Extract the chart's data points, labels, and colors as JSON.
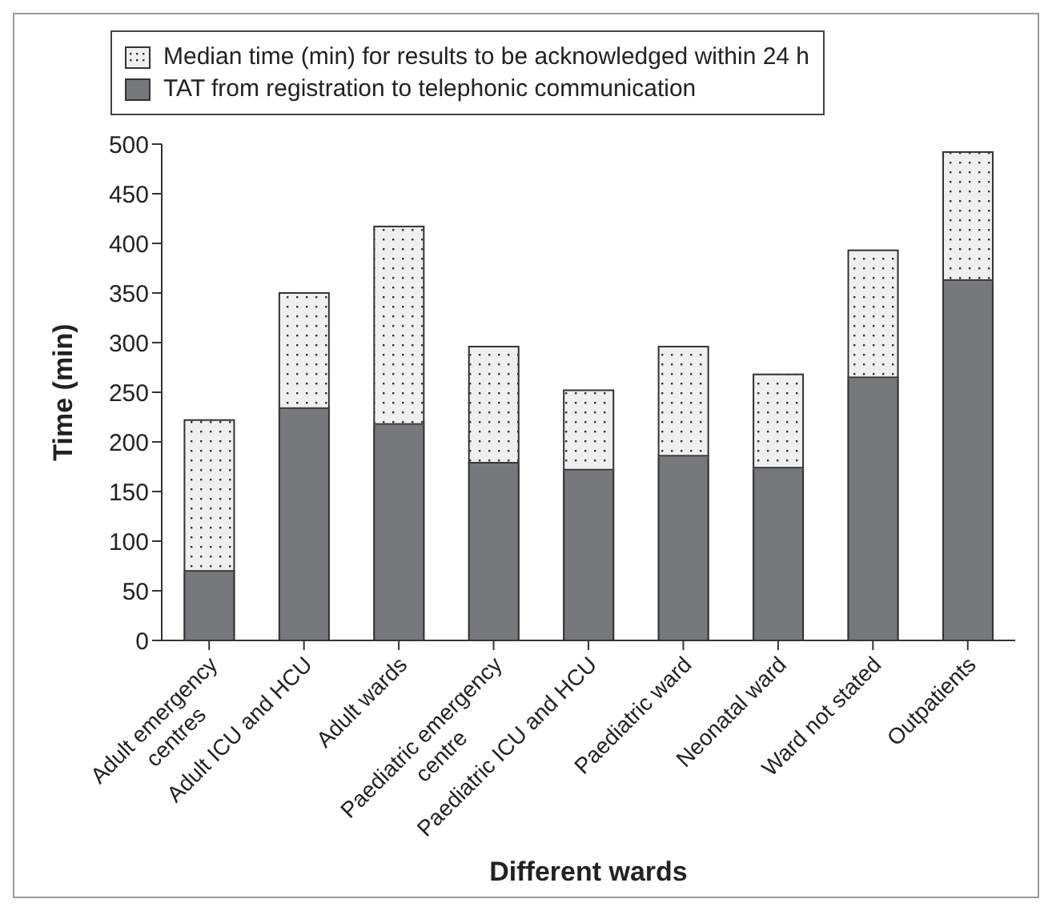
{
  "chart_data": {
    "type": "bar",
    "xlabel": "Different wards",
    "ylabel": "Time (min)",
    "categories": [
      "Adult emergency centres",
      "Adult ICU and HCU",
      "Adult wards",
      "Paediatric emergency centre",
      "Paediatric ICU and HCU",
      "Paediatric ward",
      "Neonatal ward",
      "Ward not stated",
      "Outpatients"
    ],
    "series": [
      {
        "name": "TAT from registration to telephonic communication",
        "color": "#77787b",
        "values": [
          70,
          234,
          218,
          179,
          172,
          186,
          174,
          265,
          363
        ]
      },
      {
        "name": "Median time (min) for results to be acknowledged within 24 h",
        "color": "#efefef",
        "values": [
          152,
          116,
          199,
          117,
          80,
          110,
          94,
          128,
          129
        ]
      }
    ],
    "stacked": true,
    "ylim": [
      0,
      500
    ],
    "yticks": [
      0,
      50,
      100,
      150,
      200,
      250,
      300,
      350,
      400,
      450,
      500
    ],
    "grid": false,
    "legend": "top"
  }
}
